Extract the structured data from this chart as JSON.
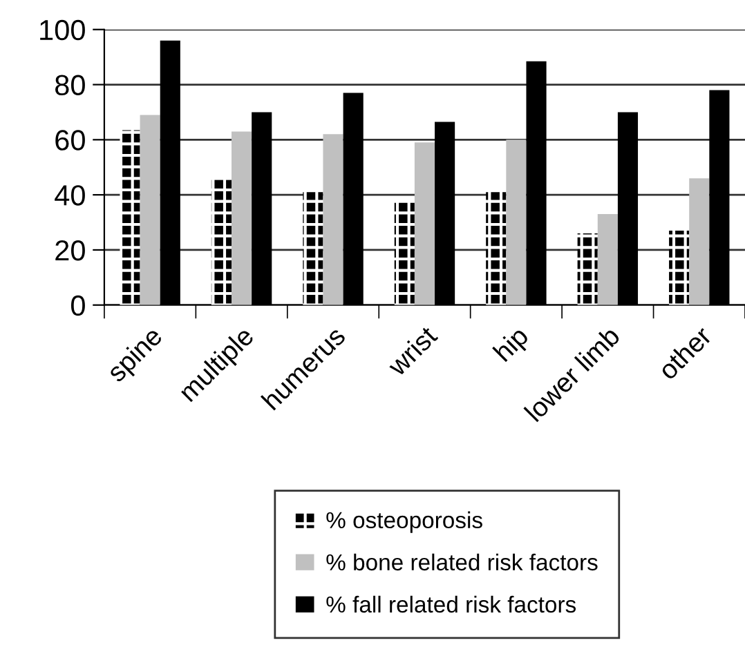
{
  "chart_data": {
    "type": "bar",
    "categories": [
      "spine",
      "multiple",
      "humerus",
      "wrist",
      "hip",
      "lower limb",
      "other"
    ],
    "series": [
      {
        "name": "% osteoporosis",
        "color": "#000000",
        "values": [
          63.5,
          45.5,
          41,
          38,
          41,
          26,
          27
        ]
      },
      {
        "name": "% bone related risk factors",
        "color": "#c0c0c0",
        "values": [
          69,
          63,
          62,
          59,
          60,
          33,
          46
        ]
      },
      {
        "name": "% fall related risk factors",
        "color": "#000000",
        "values": [
          96,
          70,
          77,
          66.5,
          88.5,
          70,
          78
        ]
      }
    ],
    "ylim": [
      0,
      100
    ],
    "yticks": [
      0,
      20,
      40,
      60,
      80,
      100
    ],
    "grid": "y",
    "legend": "bottom"
  }
}
